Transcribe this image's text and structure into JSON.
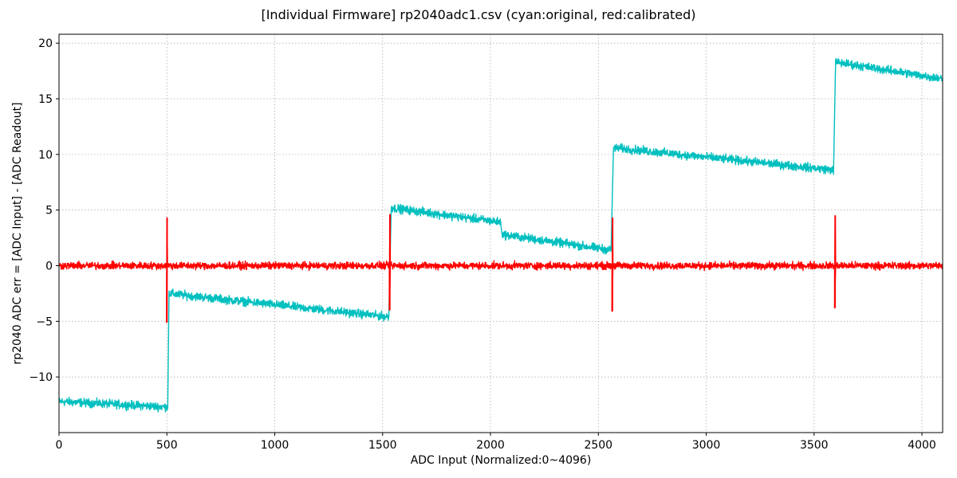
{
  "chart_data": {
    "type": "line",
    "title": "[Individual Firmware] rp2040adc1.csv (cyan:original, red:calibrated)",
    "xlabel": "ADC Input (Normalized:0~4096)",
    "ylabel": "rp2040 ADC err = [ADC Input] - [ADC Readout]",
    "xlim": [
      0,
      4096
    ],
    "ylim": [
      -15,
      20.8
    ],
    "xticks": [
      0,
      500,
      1000,
      1500,
      2000,
      2500,
      3000,
      3500,
      4000
    ],
    "yticks": [
      -10,
      -5,
      0,
      5,
      10,
      15,
      20
    ],
    "ytick_labels": [
      "−10",
      "−5",
      "0",
      "5",
      "10",
      "15",
      "20"
    ],
    "grid": true,
    "grid_style": "dotted",
    "series": [
      {
        "color": "#00bfbf",
        "noise_amplitude": 0.35,
        "segments": [
          {
            "x": [
              0,
              505
            ],
            "y": [
              -12.2,
              -12.7
            ]
          },
          {
            "x": [
              510,
              1530
            ],
            "y": [
              -2.5,
              -4.6
            ]
          },
          {
            "x": [
              1540,
              2050
            ],
            "y": [
              5.2,
              3.9
            ]
          },
          {
            "x": [
              2055,
              2560
            ],
            "y": [
              2.8,
              1.4
            ]
          },
          {
            "x": [
              2570,
              3590
            ],
            "y": [
              10.6,
              8.6
            ]
          },
          {
            "x": [
              3600,
              4096
            ],
            "y": [
              18.3,
              16.8
            ]
          }
        ]
      },
      {
        "color": "#ff0000",
        "noise_amplitude": 0.3,
        "baseline": 0,
        "spikes": [
          {
            "x": 500,
            "y_low": -5.1,
            "y_high": 4.3
          },
          {
            "x": 1533,
            "y_low": -4.0,
            "y_high": 4.6
          },
          {
            "x": 2565,
            "y_low": -4.1,
            "y_high": 4.3
          },
          {
            "x": 3597,
            "y_low": -3.8,
            "y_high": 4.5
          }
        ]
      }
    ]
  }
}
